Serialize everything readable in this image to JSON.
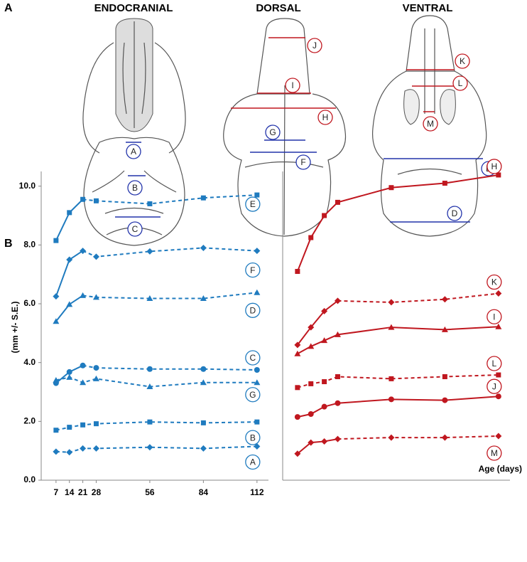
{
  "panel_a": {
    "label": "A",
    "views": [
      {
        "title": "ENDOCRANIAL",
        "measures": [
          "A",
          "B",
          "C"
        ]
      },
      {
        "title": "DORSAL",
        "measures": [
          "J",
          "I",
          "H",
          "G",
          "F"
        ]
      },
      {
        "title": "VENTRAL",
        "measures": [
          "K",
          "L",
          "M",
          "E",
          "D"
        ]
      }
    ]
  },
  "panel_b": {
    "label": "B"
  },
  "chart_data": [
    {
      "type": "line",
      "ylabel": "(mm +/- S.E.)",
      "color": "#1f7bbf",
      "solid_until": 21,
      "x": [
        7,
        14,
        21,
        28,
        56,
        84,
        112
      ],
      "xlim": [
        0,
        118
      ],
      "xticks": [
        7,
        14,
        21,
        28,
        56,
        84,
        112
      ],
      "ylim": [
        0,
        10.5
      ],
      "yticks": [
        {
          "value": 0,
          "label": "0.0"
        },
        {
          "value": 2,
          "label": "2.0"
        },
        {
          "value": 4,
          "label": "4.0"
        },
        {
          "value": 6,
          "label": "6.0"
        },
        {
          "value": 8,
          "label": "8.0"
        },
        {
          "value": 10,
          "label": "10.0"
        }
      ],
      "series": [
        {
          "name": "E",
          "marker": "square",
          "line": "mixed",
          "values": [
            8.15,
            9.1,
            9.55,
            9.5,
            9.4,
            9.6,
            9.7
          ]
        },
        {
          "name": "F",
          "marker": "diamond",
          "line": "mixed",
          "values": [
            6.25,
            7.5,
            7.8,
            7.6,
            7.78,
            7.9,
            7.8
          ]
        },
        {
          "name": "D",
          "marker": "triangle",
          "line": "mixed",
          "values": [
            5.4,
            5.98,
            6.28,
            6.22,
            6.18,
            6.18,
            6.38
          ]
        },
        {
          "name": "C",
          "marker": "circle",
          "line": "mixed",
          "values": [
            3.3,
            3.68,
            3.9,
            3.82,
            3.78,
            3.78,
            3.75
          ]
        },
        {
          "name": "G",
          "marker": "triangle",
          "line": "dashed",
          "values": [
            3.4,
            3.5,
            3.32,
            3.45,
            3.18,
            3.32,
            3.32
          ]
        },
        {
          "name": "B",
          "marker": "square",
          "line": "dashed",
          "values": [
            1.7,
            1.8,
            1.88,
            1.92,
            1.98,
            1.95,
            1.98
          ]
        },
        {
          "name": "A",
          "marker": "diamond",
          "line": "dashed",
          "values": [
            0.97,
            0.95,
            1.08,
            1.08,
            1.12,
            1.08,
            1.15
          ]
        }
      ]
    },
    {
      "type": "line",
      "xlabel": "Age (days)",
      "color": "#c0171f",
      "solid_until": 28,
      "x": [
        7,
        14,
        21,
        28,
        56,
        84,
        112
      ],
      "xlim": [
        0,
        118
      ],
      "ylim": [
        0,
        10.5
      ],
      "series": [
        {
          "name": "H",
          "marker": "square",
          "line": "solid",
          "values": [
            7.1,
            8.25,
            9.0,
            9.45,
            9.95,
            10.1,
            10.38
          ]
        },
        {
          "name": "K",
          "marker": "diamond",
          "line": "mixed",
          "values": [
            4.6,
            5.2,
            5.75,
            6.1,
            6.05,
            6.15,
            6.35
          ]
        },
        {
          "name": "I",
          "marker": "triangle",
          "line": "solid",
          "values": [
            4.3,
            4.55,
            4.75,
            4.95,
            5.2,
            5.12,
            5.22
          ]
        },
        {
          "name": "L",
          "marker": "square",
          "line": "dashed",
          "values": [
            3.15,
            3.28,
            3.35,
            3.52,
            3.45,
            3.52,
            3.58
          ]
        },
        {
          "name": "J",
          "marker": "circle",
          "line": "solid",
          "values": [
            2.15,
            2.25,
            2.5,
            2.62,
            2.75,
            2.72,
            2.85
          ]
        },
        {
          "name": "M",
          "marker": "diamond",
          "line": "mixed",
          "values": [
            0.9,
            1.28,
            1.32,
            1.4,
            1.45,
            1.45,
            1.5
          ]
        }
      ]
    }
  ]
}
